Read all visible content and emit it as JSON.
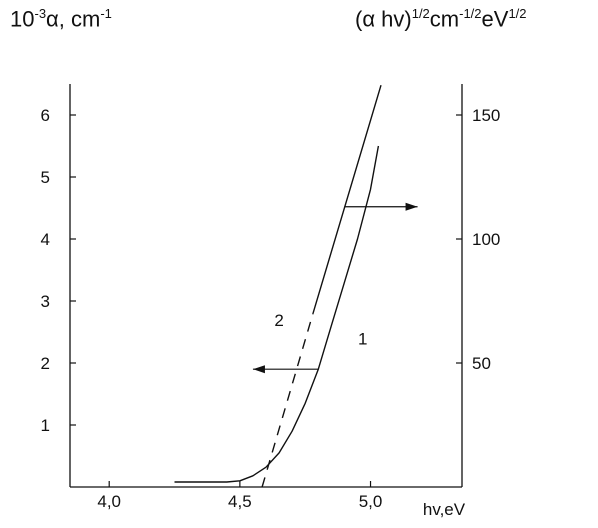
{
  "chart_data": {
    "type": "line",
    "title": "",
    "xlabel": "hv,eV",
    "ylabel_left": {
      "base": "10",
      "exp": "-3",
      "rest": "α, cm",
      "unit_exp": "-1"
    },
    "ylabel_right": {
      "part1": "(α hv)",
      "exp1": "1/2",
      "part2": "cm",
      "exp2": "-1/2",
      "part3": "eV",
      "exp3": "1/2"
    },
    "xlim": [
      3.85,
      5.35
    ],
    "ylim_left": [
      0,
      6.5
    ],
    "ylim_right": [
      0,
      162.5
    ],
    "x_ticks": [
      "4,0",
      "4,5",
      "5,0"
    ],
    "x_tick_values": [
      4.0,
      4.5,
      5.0
    ],
    "y_ticks_left": [
      "1",
      "2",
      "3",
      "4",
      "5",
      "6"
    ],
    "y_tick_values_left": [
      1,
      2,
      3,
      4,
      5,
      6
    ],
    "y_ticks_right": [
      "50",
      "100",
      "150"
    ],
    "y_tick_values_right": [
      50,
      100,
      150
    ],
    "grid": false,
    "series": [
      {
        "name": "1",
        "axis": "left",
        "x": [
          4.25,
          4.4,
          4.45,
          4.5,
          4.55,
          4.6,
          4.65,
          4.7,
          4.75,
          4.8,
          4.85,
          4.9,
          4.95,
          5.0,
          5.03
        ],
        "y": [
          0.08,
          0.08,
          0.08,
          0.1,
          0.18,
          0.32,
          0.55,
          0.9,
          1.35,
          1.9,
          2.6,
          3.3,
          4.0,
          4.8,
          5.5
        ]
      },
      {
        "name": "2",
        "axis": "right",
        "x": [
          4.78,
          5.04
        ],
        "y": [
          70,
          162
        ]
      },
      {
        "name": "2-extrapolation",
        "axis": "right",
        "style": "dashed",
        "x": [
          4.585,
          4.78
        ],
        "y": [
          0,
          70
        ]
      }
    ],
    "annotations": [
      {
        "text": "1",
        "x": 4.97,
        "y_left": 2.3
      },
      {
        "text": "2",
        "x": 4.65,
        "y_left": 2.6
      },
      {
        "type": "arrow",
        "direction": "left",
        "axis": "left",
        "from_x": 4.8,
        "to_x": 4.55,
        "y": 1.9
      },
      {
        "type": "arrow",
        "direction": "right",
        "axis": "right",
        "from_x": 4.9,
        "to_x": 5.18,
        "y": 113
      }
    ]
  }
}
